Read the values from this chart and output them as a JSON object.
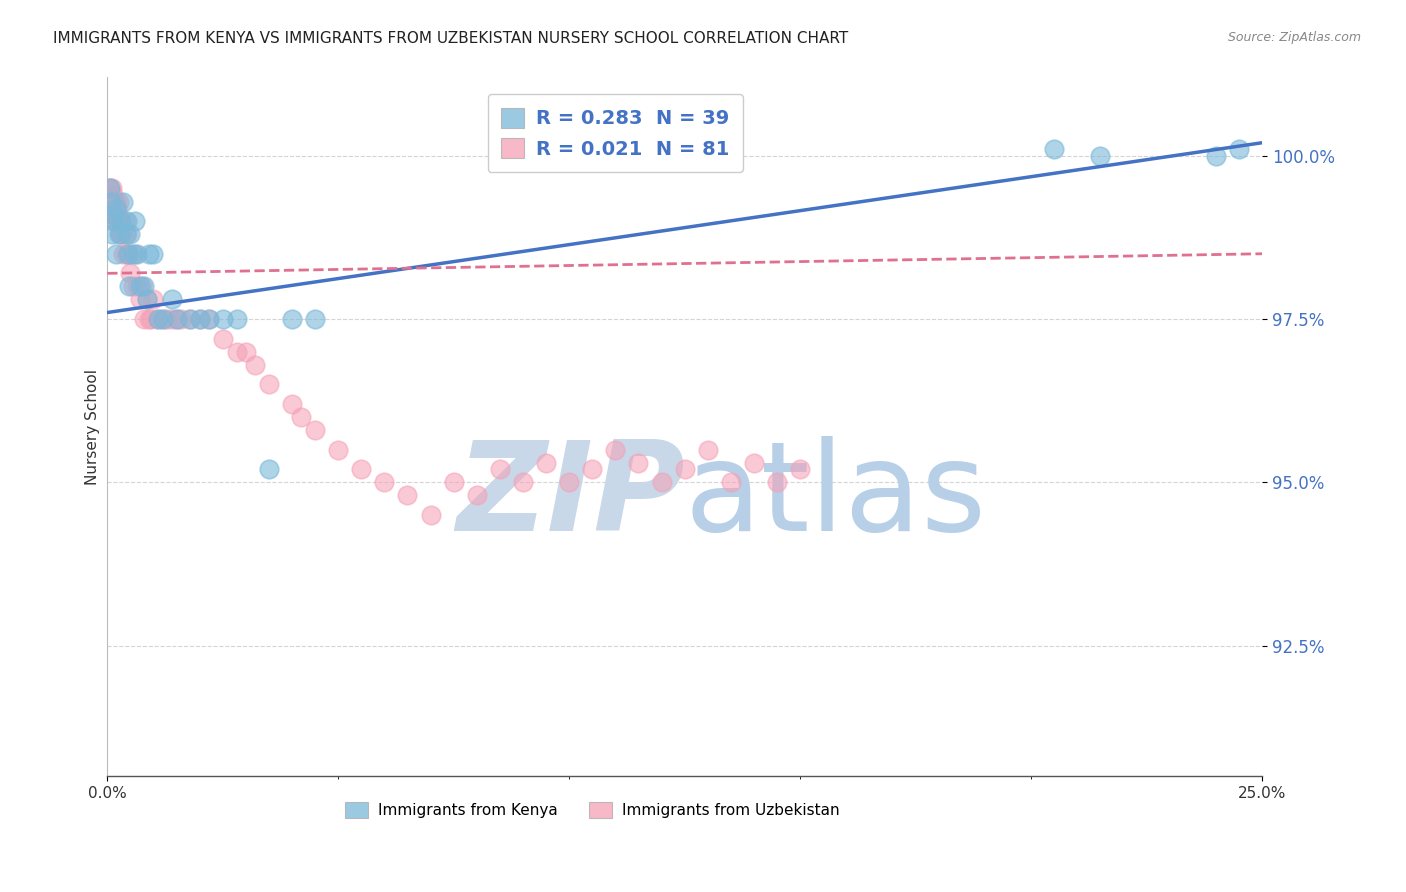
{
  "title": "IMMIGRANTS FROM KENYA VS IMMIGRANTS FROM UZBEKISTAN NURSERY SCHOOL CORRELATION CHART",
  "source": "Source: ZipAtlas.com",
  "ylabel": "Nursery School",
  "xlim": [
    0.0,
    25.0
  ],
  "ylim": [
    90.5,
    101.2
  ],
  "yticks": [
    92.5,
    95.0,
    97.5,
    100.0
  ],
  "ytick_labels": [
    "92.5%",
    "95.0%",
    "97.5%",
    "100.0%"
  ],
  "xtick_positions": [
    0.0,
    25.0
  ],
  "xtick_labels": [
    "0.0%",
    "25.0%"
  ],
  "kenya_color": "#7ab8d9",
  "uzbekistan_color": "#f5a0b5",
  "kenya_R": 0.283,
  "kenya_N": 39,
  "uzbekistan_R": 0.021,
  "uzbekistan_N": 81,
  "kenya_scatter_x": [
    0.05,
    0.08,
    0.1,
    0.12,
    0.15,
    0.18,
    0.2,
    0.25,
    0.3,
    0.35,
    0.4,
    0.42,
    0.45,
    0.48,
    0.5,
    0.55,
    0.6,
    0.65,
    0.7,
    0.8,
    0.85,
    0.9,
    1.0,
    1.1,
    1.2,
    1.4,
    1.5,
    1.8,
    2.0,
    2.2,
    2.5,
    2.8,
    3.5,
    4.0,
    4.5,
    20.5,
    21.5,
    24.0,
    24.5
  ],
  "kenya_scatter_y": [
    99.5,
    99.3,
    98.8,
    99.0,
    99.1,
    98.5,
    99.2,
    98.8,
    99.0,
    99.3,
    98.8,
    99.0,
    98.5,
    98.0,
    98.8,
    98.5,
    99.0,
    98.5,
    98.0,
    98.0,
    97.8,
    98.5,
    98.5,
    97.5,
    97.5,
    97.8,
    97.5,
    97.5,
    97.5,
    97.5,
    97.5,
    97.5,
    95.2,
    97.5,
    97.5,
    100.1,
    100.0,
    100.0,
    100.1
  ],
  "uzbekistan_scatter_x": [
    0.03,
    0.05,
    0.06,
    0.07,
    0.08,
    0.09,
    0.1,
    0.11,
    0.12,
    0.13,
    0.14,
    0.15,
    0.16,
    0.17,
    0.18,
    0.19,
    0.2,
    0.21,
    0.22,
    0.23,
    0.25,
    0.26,
    0.27,
    0.28,
    0.3,
    0.32,
    0.35,
    0.38,
    0.4,
    0.42,
    0.45,
    0.48,
    0.5,
    0.55,
    0.6,
    0.65,
    0.7,
    0.75,
    0.8,
    0.85,
    0.9,
    0.95,
    1.0,
    1.1,
    1.2,
    1.3,
    1.4,
    1.5,
    1.6,
    1.8,
    2.0,
    2.2,
    2.5,
    2.8,
    3.0,
    3.2,
    3.5,
    4.0,
    4.2,
    4.5,
    5.0,
    5.5,
    6.0,
    6.5,
    7.0,
    7.5,
    8.0,
    8.5,
    9.0,
    9.5,
    10.0,
    10.5,
    11.0,
    11.5,
    12.0,
    12.5,
    13.0,
    13.5,
    14.0,
    14.5,
    15.0
  ],
  "uzbekistan_scatter_y": [
    99.5,
    99.3,
    99.5,
    99.2,
    99.4,
    99.2,
    99.5,
    99.3,
    99.2,
    99.4,
    99.1,
    99.3,
    99.2,
    99.0,
    99.3,
    99.1,
    99.2,
    99.0,
    99.2,
    99.1,
    99.3,
    99.0,
    98.8,
    99.0,
    98.8,
    98.8,
    98.5,
    99.0,
    98.5,
    98.8,
    98.5,
    98.5,
    98.2,
    98.0,
    98.5,
    98.0,
    97.8,
    98.0,
    97.5,
    97.8,
    97.5,
    97.5,
    97.8,
    97.5,
    97.5,
    97.5,
    97.5,
    97.5,
    97.5,
    97.5,
    97.5,
    97.5,
    97.2,
    97.0,
    97.0,
    96.8,
    96.5,
    96.2,
    96.0,
    95.8,
    95.5,
    95.2,
    95.0,
    94.8,
    94.5,
    95.0,
    94.8,
    95.2,
    95.0,
    95.3,
    95.0,
    95.2,
    95.5,
    95.3,
    95.0,
    95.2,
    95.5,
    95.0,
    95.3,
    95.0,
    95.2
  ],
  "watermark_color": "#ccddf0",
  "background_color": "#ffffff",
  "grid_color": "#d0d0d0",
  "title_fontsize": 11,
  "kenya_line_color": "#4472c4",
  "uzbekistan_line_color": "#e07090",
  "kenya_line_x0": 0.0,
  "kenya_line_y0": 97.6,
  "kenya_line_x1": 25.0,
  "kenya_line_y1": 100.2,
  "uzbekistan_line_x0": 0.0,
  "uzbekistan_line_y0": 98.2,
  "uzbekistan_line_x1": 25.0,
  "uzbekistan_line_y1": 98.5,
  "tick_color": "#4472c4",
  "legend2_kenya": "Immigrants from Kenya",
  "legend2_uzbekistan": "Immigrants from Uzbekistan"
}
